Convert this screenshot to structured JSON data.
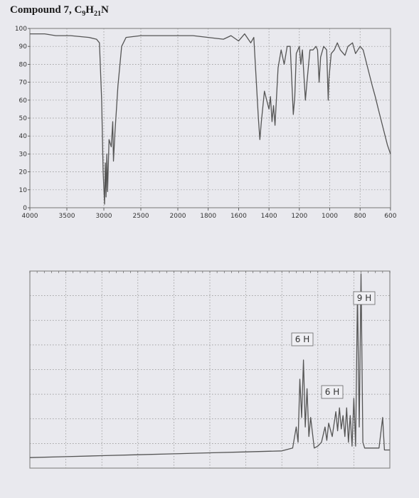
{
  "title": {
    "text": "Compound 7, C",
    "sub1": "9",
    "mid": "H",
    "sub2": "21",
    "end": "N"
  },
  "colors": {
    "grid": "#8a8a8a",
    "trace": "#555555",
    "background": "#e9e9ee"
  },
  "chart_data": [
    {
      "type": "line",
      "title": "",
      "xlabel": "",
      "ylabel": "",
      "x_ticks": [
        "4000",
        "3500",
        "3000",
        "2500",
        "2000",
        "1800",
        "1600",
        "1400",
        "1200",
        "1000",
        "800",
        "600"
      ],
      "y_ticks": [
        "0",
        "10",
        "20",
        "30",
        "40",
        "50",
        "60",
        "70",
        "80",
        "90",
        "100"
      ],
      "ylim": [
        0,
        100
      ],
      "series": [
        {
          "points": [
            [
              4000,
              97
            ],
            [
              3800,
              97
            ],
            [
              3650,
              96
            ],
            [
              3450,
              96
            ],
            [
              3200,
              95
            ],
            [
              3100,
              94
            ],
            [
              3060,
              92
            ],
            [
              3030,
              60
            ],
            [
              3010,
              20
            ],
            [
              2990,
              2
            ],
            [
              2980,
              25
            ],
            [
              2970,
              6
            ],
            [
              2960,
              30
            ],
            [
              2950,
              9
            ],
            [
              2930,
              38
            ],
            [
              2900,
              34
            ],
            [
              2880,
              48
            ],
            [
              2870,
              26
            ],
            [
              2850,
              42
            ],
            [
              2810,
              68
            ],
            [
              2760,
              90
            ],
            [
              2700,
              95
            ],
            [
              2500,
              96
            ],
            [
              2200,
              96
            ],
            [
              2000,
              96
            ],
            [
              1900,
              96
            ],
            [
              1800,
              95
            ],
            [
              1700,
              94
            ],
            [
              1650,
              96
            ],
            [
              1600,
              93
            ],
            [
              1560,
              97
            ],
            [
              1520,
              92
            ],
            [
              1500,
              95
            ],
            [
              1470,
              50
            ],
            [
              1460,
              38
            ],
            [
              1450,
              48
            ],
            [
              1430,
              65
            ],
            [
              1400,
              55
            ],
            [
              1390,
              62
            ],
            [
              1380,
              48
            ],
            [
              1370,
              57
            ],
            [
              1360,
              46
            ],
            [
              1340,
              78
            ],
            [
              1320,
              88
            ],
            [
              1300,
              80
            ],
            [
              1280,
              90
            ],
            [
              1260,
              90
            ],
            [
              1240,
              52
            ],
            [
              1230,
              62
            ],
            [
              1220,
              86
            ],
            [
              1200,
              90
            ],
            [
              1190,
              80
            ],
            [
              1180,
              88
            ],
            [
              1160,
              60
            ],
            [
              1150,
              70
            ],
            [
              1130,
              88
            ],
            [
              1110,
              88
            ],
            [
              1090,
              90
            ],
            [
              1080,
              88
            ],
            [
              1070,
              70
            ],
            [
              1060,
              84
            ],
            [
              1040,
              90
            ],
            [
              1020,
              88
            ],
            [
              1010,
              60
            ],
            [
              1005,
              72
            ],
            [
              990,
              86
            ],
            [
              970,
              88
            ],
            [
              950,
              92
            ],
            [
              930,
              88
            ],
            [
              900,
              85
            ],
            [
              880,
              90
            ],
            [
              850,
              92
            ],
            [
              830,
              86
            ],
            [
              800,
              90
            ],
            [
              780,
              88
            ],
            [
              750,
              78
            ],
            [
              720,
              68
            ],
            [
              700,
              62
            ],
            [
              680,
              55
            ],
            [
              650,
              45
            ],
            [
              620,
              35
            ],
            [
              600,
              30
            ]
          ]
        }
      ]
    },
    {
      "type": "line",
      "title": "",
      "xlabel": "",
      "ylabel": "",
      "xlim": [
        0,
        1
      ],
      "ylim": [
        0,
        1
      ],
      "annotations": [
        "6 H",
        "6 H",
        "9 H"
      ],
      "series": [
        {
          "points": [
            [
              0,
              0.04
            ],
            [
              0.1,
              0.045
            ],
            [
              0.2,
              0.05
            ],
            [
              0.3,
              0.055
            ],
            [
              0.4,
              0.06
            ],
            [
              0.5,
              0.065
            ],
            [
              0.6,
              0.07
            ],
            [
              0.7,
              0.075
            ],
            [
              0.73,
              0.09
            ],
            [
              0.74,
              0.2
            ],
            [
              0.745,
              0.12
            ],
            [
              0.75,
              0.45
            ],
            [
              0.755,
              0.25
            ],
            [
              0.76,
              0.55
            ],
            [
              0.765,
              0.2
            ],
            [
              0.77,
              0.4
            ],
            [
              0.775,
              0.15
            ],
            [
              0.78,
              0.25
            ],
            [
              0.79,
              0.09
            ],
            [
              0.8,
              0.1
            ],
            [
              0.81,
              0.12
            ],
            [
              0.82,
              0.2
            ],
            [
              0.825,
              0.13
            ],
            [
              0.83,
              0.22
            ],
            [
              0.84,
              0.15
            ],
            [
              0.85,
              0.28
            ],
            [
              0.855,
              0.18
            ],
            [
              0.86,
              0.3
            ],
            [
              0.865,
              0.19
            ],
            [
              0.87,
              0.26
            ],
            [
              0.875,
              0.15
            ],
            [
              0.88,
              0.3
            ],
            [
              0.885,
              0.12
            ],
            [
              0.89,
              0.26
            ],
            [
              0.895,
              0.1
            ],
            [
              0.9,
              0.35
            ],
            [
              0.905,
              0.1
            ],
            [
              0.91,
              0.9
            ],
            [
              0.915,
              0.2
            ],
            [
              0.92,
              1.0
            ],
            [
              0.925,
              0.12
            ],
            [
              0.93,
              0.09
            ],
            [
              0.95,
              0.09
            ],
            [
              0.97,
              0.09
            ],
            [
              0.98,
              0.25
            ],
            [
              0.985,
              0.08
            ],
            [
              1,
              0.08
            ]
          ]
        }
      ]
    }
  ]
}
